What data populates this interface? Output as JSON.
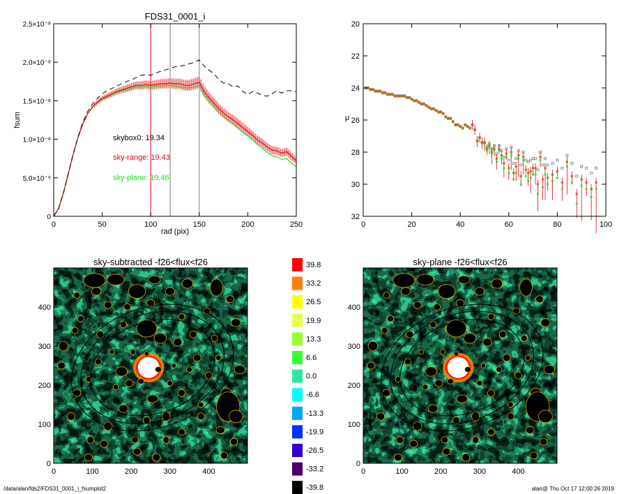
{
  "footer": {
    "path": "/data/alan/fds2/FDS31_0001_i_fsumplot2",
    "stamp": "alan@  Thu Oct 17 12:00:26 2019"
  },
  "colors": {
    "skybox": "#000000",
    "sky_range": "#e8001c",
    "sky_plane": "#19e619",
    "error_band": "#f4a0a0",
    "map_palette": [
      "#ff0000",
      "#ff7f00",
      "#ffff00",
      "#e6ff4d",
      "#99ff33",
      "#33ff33",
      "#33e6a0",
      "#00ffff",
      "#00a6ff",
      "#0033ff",
      "#3300cc",
      "#4d0066",
      "#000000"
    ]
  },
  "chart_data": [
    {
      "type": "line",
      "title": "FDS31_0001_i",
      "xlabel": "rad (pix)",
      "ylabel": "fsum",
      "xlim": [
        0,
        250
      ],
      "ylim": [
        0,
        2.5e-08
      ],
      "x_ticks": [
        "0",
        "50",
        "100",
        "150",
        "200",
        "250"
      ],
      "y_ticks": [
        "0",
        "5.0×10⁻⁹",
        "1.0×10⁻⁸",
        "1.5×10⁻⁸",
        "2.0×10⁻⁸",
        "2.5×10⁻⁸"
      ],
      "vlines": [
        {
          "x": 100,
          "color": "#e8001c"
        },
        {
          "x": 120,
          "color": "#808080"
        },
        {
          "x": 150,
          "color": "#808080"
        }
      ],
      "annotations": [
        {
          "text": "skybox0: 19.34",
          "color": "#000000"
        },
        {
          "text": "sky-range: 19.43",
          "color": "#e8001c"
        },
        {
          "text": "sky-plane: 19.46",
          "color": "#19e619"
        }
      ],
      "x": [
        0,
        5,
        10,
        15,
        20,
        25,
        30,
        35,
        40,
        45,
        50,
        55,
        60,
        65,
        70,
        75,
        80,
        85,
        90,
        95,
        100,
        105,
        110,
        115,
        120,
        125,
        130,
        135,
        140,
        145,
        150,
        155,
        160,
        165,
        170,
        175,
        180,
        185,
        190,
        195,
        200,
        205,
        210,
        215,
        220,
        225,
        230,
        235,
        240,
        245,
        250
      ],
      "series": [
        {
          "key": "skybox",
          "style": "dashed",
          "values": [
            0,
            1e-09,
            3e-09,
            5.5e-09,
            8e-09,
            1.03e-08,
            1.22e-08,
            1.36e-08,
            1.46e-08,
            1.53e-08,
            1.59e-08,
            1.63e-08,
            1.66e-08,
            1.69e-08,
            1.72e-08,
            1.75e-08,
            1.77e-08,
            1.8e-08,
            1.83e-08,
            1.84e-08,
            1.83e-08,
            1.86e-08,
            1.88e-08,
            1.9e-08,
            1.92e-08,
            1.94e-08,
            1.95e-08,
            1.96e-08,
            1.98e-08,
            2e-08,
            2.03e-08,
            1.95e-08,
            1.9e-08,
            1.85e-08,
            1.78e-08,
            1.73e-08,
            1.72e-08,
            1.68e-08,
            1.69e-08,
            1.62e-08,
            1.58e-08,
            1.62e-08,
            1.6e-08,
            1.57e-08,
            1.56e-08,
            1.59e-08,
            1.63e-08,
            1.6e-08,
            1.63e-08,
            1.63e-08,
            1.62e-08
          ]
        },
        {
          "key": "sky_range",
          "style": "solid",
          "values": [
            0,
            1e-09,
            3e-09,
            5.5e-09,
            8e-09,
            1.02e-08,
            1.2e-08,
            1.33e-08,
            1.42e-08,
            1.48e-08,
            1.53e-08,
            1.56e-08,
            1.59e-08,
            1.62e-08,
            1.64e-08,
            1.66e-08,
            1.68e-08,
            1.7e-08,
            1.7e-08,
            1.71e-08,
            1.7e-08,
            1.71e-08,
            1.72e-08,
            1.72e-08,
            1.73e-08,
            1.72e-08,
            1.72e-08,
            1.7e-08,
            1.7e-08,
            1.72e-08,
            1.74e-08,
            1.62e-08,
            1.54e-08,
            1.47e-08,
            1.4e-08,
            1.34e-08,
            1.29e-08,
            1.25e-08,
            1.2e-08,
            1.15e-08,
            1.1e-08,
            1.05e-08,
            9.9e-09,
            9.5e-09,
            9e-09,
            8.6e-09,
            8.5e-09,
            8.2e-09,
            8.4e-09,
            7.8e-09,
            7.2e-09
          ]
        },
        {
          "key": "sky_plane",
          "style": "solid",
          "values": [
            0,
            1e-09,
            3e-09,
            5.5e-09,
            8e-09,
            1.02e-08,
            1.2e-08,
            1.33e-08,
            1.42e-08,
            1.48e-08,
            1.52e-08,
            1.55e-08,
            1.58e-08,
            1.61e-08,
            1.63e-08,
            1.64e-08,
            1.66e-08,
            1.68e-08,
            1.68e-08,
            1.69e-08,
            1.68e-08,
            1.69e-08,
            1.69e-08,
            1.7e-08,
            1.7e-08,
            1.69e-08,
            1.68e-08,
            1.67e-08,
            1.67e-08,
            1.68e-08,
            1.7e-08,
            1.58e-08,
            1.5e-08,
            1.43e-08,
            1.36e-08,
            1.3e-08,
            1.24e-08,
            1.2e-08,
            1.14e-08,
            1.09e-08,
            1.04e-08,
            9.9e-09,
            9.3e-09,
            8.8e-09,
            8.3e-09,
            7.9e-09,
            7.7e-09,
            7.4e-09,
            7.5e-09,
            6.9e-09,
            6.4e-09
          ]
        }
      ]
    },
    {
      "type": "scatter",
      "title": "",
      "xlabel": "",
      "ylabel": "μ",
      "xlim": [
        0,
        100
      ],
      "ylim": [
        32,
        20
      ],
      "x_ticks": [
        "0",
        "20",
        "40",
        "60",
        "80",
        "100"
      ],
      "y_ticks": [
        "20",
        "22",
        "24",
        "26",
        "28",
        "30",
        "32"
      ],
      "x": [
        1,
        2,
        3,
        4,
        5,
        6,
        7,
        8,
        9,
        10,
        11,
        12,
        13,
        14,
        15,
        16,
        17,
        18,
        19,
        20,
        21,
        22,
        23,
        24,
        25,
        26,
        27,
        28,
        29,
        30,
        31,
        32,
        33,
        34,
        35,
        36,
        37,
        38,
        39,
        40,
        41,
        42,
        43,
        44,
        45,
        46,
        47,
        48,
        49,
        50,
        51,
        52,
        53,
        54,
        55,
        56,
        57,
        58,
        59,
        60,
        61,
        62,
        63,
        64,
        65,
        66,
        67,
        68,
        69,
        70,
        71,
        72,
        73,
        74,
        75,
        76,
        78,
        80,
        82,
        84,
        86,
        88,
        90,
        92,
        94,
        96
      ],
      "series": [
        {
          "key": "skybox",
          "values": [
            24.0,
            24.0,
            24.1,
            24.1,
            24.2,
            24.2,
            24.2,
            24.3,
            24.3,
            24.4,
            24.4,
            24.4,
            24.5,
            24.5,
            24.5,
            24.5,
            24.5,
            24.6,
            24.6,
            24.7,
            24.8,
            24.8,
            24.9,
            25.0,
            25.0,
            25.1,
            25.2,
            25.3,
            25.3,
            25.4,
            25.5,
            25.5,
            25.6,
            25.8,
            25.9,
            25.9,
            26.1,
            26.3,
            26.3,
            26.4,
            26.5,
            26.3,
            26.4,
            26.5,
            26.3,
            26.6,
            27.3,
            27.1,
            27.4,
            27.4,
            27.7,
            27.5,
            27.8,
            27.6,
            28.1,
            27.6,
            27.9,
            28.3,
            27.8,
            28.5,
            27.7,
            28.7,
            28.4,
            27.9,
            28.8,
            28.0,
            28.5,
            28.6,
            28.5,
            28.4,
            28.4,
            29.1,
            28.0,
            28.8,
            28.4,
            28.8,
            28.7,
            28.5,
            29.0,
            28.2,
            28.7,
            29.5,
            28.9,
            29.0,
            29.3,
            29.0
          ]
        },
        {
          "key": "sky_range",
          "values": [
            24.0,
            24.0,
            24.1,
            24.1,
            24.2,
            24.2,
            24.2,
            24.3,
            24.3,
            24.4,
            24.4,
            24.4,
            24.5,
            24.5,
            24.5,
            24.5,
            24.5,
            24.6,
            24.6,
            24.7,
            24.8,
            24.8,
            24.9,
            25.0,
            25.0,
            25.1,
            25.2,
            25.3,
            25.3,
            25.4,
            25.5,
            25.5,
            25.6,
            25.8,
            25.9,
            25.9,
            26.1,
            26.3,
            26.3,
            26.4,
            26.5,
            26.3,
            26.4,
            26.5,
            26.3,
            26.6,
            27.3,
            27.1,
            27.4,
            27.4,
            27.8,
            27.6,
            28.0,
            27.8,
            28.4,
            27.8,
            28.2,
            28.7,
            28.1,
            29.0,
            28.0,
            29.3,
            28.9,
            28.2,
            29.5,
            28.3,
            29.1,
            29.3,
            29.2,
            29.0,
            29.0,
            30.0,
            28.3,
            29.7,
            29.0,
            29.6,
            29.4,
            29.2,
            29.9,
            28.6,
            29.5,
            30.6,
            29.7,
            29.9,
            30.3,
            29.9
          ]
        },
        {
          "key": "sky_plane",
          "values": [
            24.0,
            24.0,
            24.1,
            24.1,
            24.2,
            24.2,
            24.2,
            24.3,
            24.3,
            24.4,
            24.4,
            24.4,
            24.5,
            24.5,
            24.5,
            24.5,
            24.5,
            24.6,
            24.6,
            24.7,
            24.8,
            24.8,
            24.9,
            25.0,
            25.0,
            25.1,
            25.2,
            25.3,
            25.3,
            25.4,
            25.5,
            25.5,
            25.6,
            25.8,
            25.9,
            25.9,
            26.1,
            26.3,
            26.3,
            26.4,
            26.5,
            26.3,
            26.4,
            26.5,
            26.3,
            26.6,
            27.3,
            27.1,
            27.4,
            27.5,
            27.9,
            27.7,
            28.1,
            27.9,
            28.6,
            27.9,
            28.4,
            29.0,
            28.3,
            29.3,
            28.2,
            29.7,
            29.3,
            28.4,
            30.0,
            28.5,
            29.5,
            29.8,
            29.6,
            29.4,
            29.4,
            30.6,
            28.5,
            30.2,
            29.4,
            30.0,
            29.8,
            29.6,
            30.3,
            28.9,
            29.9,
            31.2,
            30.1,
            30.3,
            30.8,
            30.3
          ]
        }
      ]
    },
    {
      "type": "heatmap",
      "title": "sky-subtracted -f26<flux<f26",
      "xlim": [
        0,
        500
      ],
      "ylim": [
        0,
        500
      ],
      "x_ticks": [
        "0",
        "100",
        "200",
        "300",
        "400"
      ],
      "y_ticks": [
        "0",
        "100",
        "200",
        "300",
        "400"
      ]
    },
    {
      "type": "heatmap",
      "title": "sky-plane -f26<flux<f26",
      "xlim": [
        0,
        500
      ],
      "ylim": [
        0,
        500
      ],
      "x_ticks": [
        "0",
        "100",
        "200",
        "300",
        "400"
      ],
      "y_ticks": [
        "0",
        "100",
        "200",
        "300",
        "400"
      ]
    },
    {
      "type": "colorbar",
      "levels": [
        "39.8",
        "33.2",
        "26.5",
        "19.9",
        "13.3",
        "6.6",
        "0.0",
        "-6.6",
        "-13.3",
        "-19.9",
        "-26.5",
        "-33.2",
        "-39.8"
      ]
    }
  ]
}
